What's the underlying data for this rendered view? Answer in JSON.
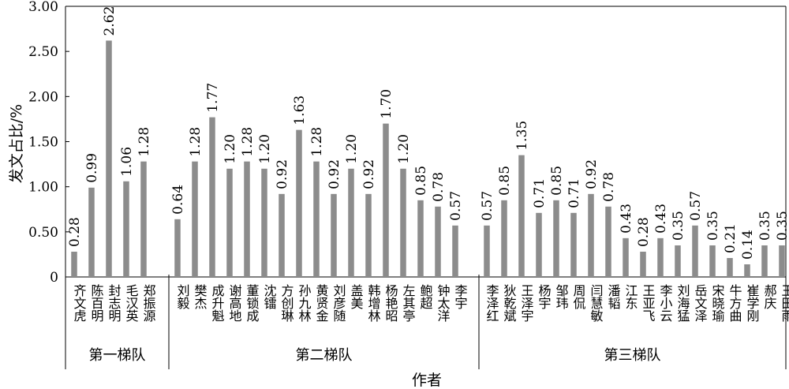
{
  "chart_data": {
    "type": "bar",
    "xlabel": "作者",
    "ylabel": "发文占比/%",
    "ylim": [
      0,
      3.0
    ],
    "yticks": [
      "0",
      "0.50",
      "1.00",
      "1.50",
      "2.00",
      "2.50",
      "3.00"
    ],
    "bar_color": "#8c8c8c",
    "groups": [
      {
        "name": "第一梯队",
        "categories": [
          "齐文虎",
          "陈百明",
          "封志明",
          "毛汉英",
          "郑振源"
        ],
        "values": [
          0.28,
          0.99,
          2.62,
          1.06,
          1.28
        ],
        "labels": [
          "0.28",
          "0.99",
          "2.62",
          "1.06",
          "1.28"
        ]
      },
      {
        "name": "第二梯队",
        "categories": [
          "刘毅",
          "樊杰",
          "成升魁",
          "谢高地",
          "董锁成",
          "沈镭",
          "方创琳",
          "孙九林",
          "黄贤金",
          "刘彦随",
          "盖美",
          "韩增林",
          "杨艳昭",
          "左其亭",
          "鲍超",
          "钟太洋",
          "李宇"
        ],
        "values": [
          0.64,
          1.28,
          1.77,
          1.2,
          1.28,
          1.2,
          0.92,
          1.63,
          1.28,
          0.92,
          1.2,
          0.92,
          1.7,
          1.2,
          0.85,
          0.78,
          0.57
        ],
        "labels": [
          "0.64",
          "1.28",
          "1.77",
          "1.20",
          "1.28",
          "1.20",
          "0.92",
          "1.63",
          "1.28",
          "0.92",
          "1.20",
          "0.92",
          "1.70",
          "1.20",
          "0.85",
          "0.78",
          "0.57"
        ]
      },
      {
        "name": "第三梯队",
        "categories": [
          "李泽红",
          "狄乾斌",
          "王泽宇",
          "杨宇",
          "邹玮",
          "周侃",
          "闫慧敏",
          "潘韬",
          "江东",
          "王亚飞",
          "李小云",
          "刘海猛",
          "岳文泽",
          "宋晓瑜",
          "牛方曲",
          "崔学刚",
          "郝庆",
          "王田雨"
        ],
        "values": [
          0.57,
          0.85,
          1.35,
          0.71,
          0.85,
          0.71,
          0.92,
          0.78,
          0.43,
          0.28,
          0.43,
          0.35,
          0.57,
          0.35,
          0.21,
          0.14,
          0.35,
          0.35
        ],
        "labels": [
          "0.57",
          "0.85",
          "1.35",
          "0.71",
          "0.85",
          "0.71",
          "0.92",
          "0.78",
          "0.43",
          "0.28",
          "0.43",
          "0.35",
          "0.57",
          "0.35",
          "0.21",
          "0.14",
          "0.35",
          "0.35"
        ]
      }
    ]
  }
}
